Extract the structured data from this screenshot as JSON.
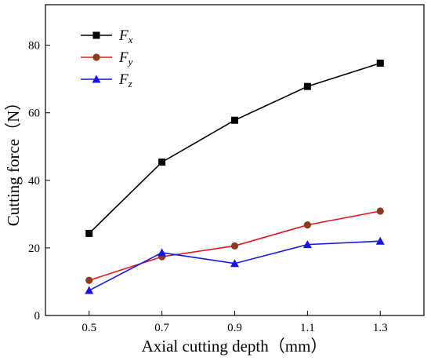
{
  "chart_data": {
    "type": "line",
    "x": [
      0.5,
      0.7,
      0.9,
      1.1,
      1.3
    ],
    "x_tick_labels": [
      "0.5",
      "0.7",
      "0.9",
      "1.1",
      "1.3"
    ],
    "y_tick_labels": [
      "0",
      "20",
      "40",
      "60",
      "80"
    ],
    "xlabel": "Axial cutting depth（mm）",
    "ylabel": "Cutting force（N）",
    "xlim": [
      0.38,
      1.42
    ],
    "ylim": [
      0,
      92
    ],
    "y_ticks": [
      0,
      20,
      40,
      60,
      80
    ],
    "grid": false,
    "legend_position": "top-left",
    "series": [
      {
        "name": "F",
        "subscript": "x",
        "marker": "square",
        "color": "#000000",
        "values": [
          24.3,
          45.4,
          57.8,
          67.8,
          74.7
        ]
      },
      {
        "name": "F",
        "subscript": "y",
        "marker": "circle",
        "color": "#e8141c",
        "marker_color": "#8b3a1e",
        "values": [
          10.4,
          17.4,
          20.6,
          26.8,
          30.9
        ]
      },
      {
        "name": "F",
        "subscript": "z",
        "marker": "triangle",
        "color": "#1414e6",
        "values": [
          7.4,
          18.6,
          15.4,
          21.0,
          22.0
        ]
      }
    ]
  }
}
